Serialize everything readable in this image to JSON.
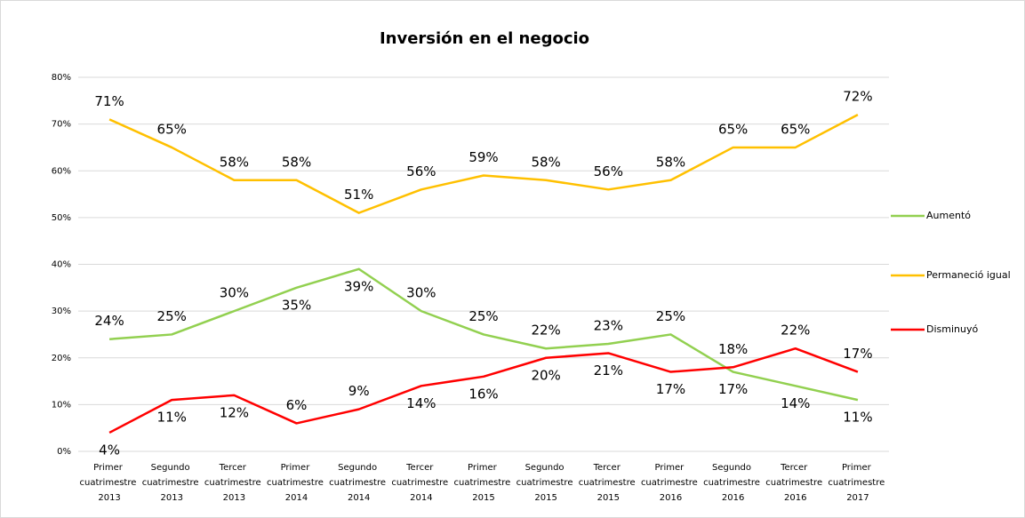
{
  "chart_data": {
    "type": "line",
    "title": "Inversión en el negocio",
    "categories": [
      "Primer cuatrimestre 2013",
      "Segundo cuatrimestre 2013",
      "Tercer cuatrimestre 2013",
      "Primer cuatrimestre 2014",
      "Segundo cuatrimestre 2014",
      "Tercer cuatrimestre 2014",
      "Primer cuatrimestre 2015",
      "Segundo cuatrimestre 2015",
      "Tercer cuatrimestre 2015",
      "Primer cuatrimestre 2016",
      "Segundo cuatrimestre 2016",
      "Tercer cuatrimestre 2016",
      "Primer cuatrimestre 2017"
    ],
    "series": [
      {
        "name": "Aumentó",
        "color": "#92D050",
        "values": [
          24,
          25,
          30,
          35,
          39,
          30,
          25,
          22,
          23,
          25,
          17,
          14,
          11
        ],
        "value_labels": [
          "24%",
          "25%",
          "30%",
          "35%",
          "39%",
          "30%",
          "25%",
          "22%",
          "23%",
          "25%",
          "17%",
          "14%",
          "11%"
        ]
      },
      {
        "name": "Permaneció igual",
        "color": "#FFC000",
        "values": [
          71,
          65,
          58,
          58,
          51,
          56,
          59,
          58,
          56,
          58,
          65,
          65,
          72
        ],
        "value_labels": [
          "71%",
          "65%",
          "58%",
          "58%",
          "51%",
          "56%",
          "59%",
          "58%",
          "56%",
          "58%",
          "65%",
          "65%",
          "72%"
        ]
      },
      {
        "name": "Disminuyó",
        "color": "#FF0000",
        "values": [
          4,
          11,
          12,
          6,
          9,
          14,
          16,
          20,
          21,
          17,
          18,
          22,
          17
        ],
        "value_labels": [
          "4%",
          "11%",
          "12%",
          "6%",
          "9%",
          "14%",
          "16%",
          "20%",
          "21%",
          "17%",
          "18%",
          "22%",
          "17%"
        ]
      }
    ],
    "ylim": [
      0,
      80
    ],
    "yticks": [
      {
        "value": 0,
        "label": "0%"
      },
      {
        "value": 10,
        "label": "10%"
      },
      {
        "value": 20,
        "label": "20%"
      },
      {
        "value": 30,
        "label": "30%"
      },
      {
        "value": 40,
        "label": "40%"
      },
      {
        "value": 50,
        "label": "50%"
      },
      {
        "value": 60,
        "label": "60%"
      },
      {
        "value": 70,
        "label": "70%"
      },
      {
        "value": 80,
        "label": "80%"
      }
    ],
    "grid": true,
    "legend": "right"
  }
}
